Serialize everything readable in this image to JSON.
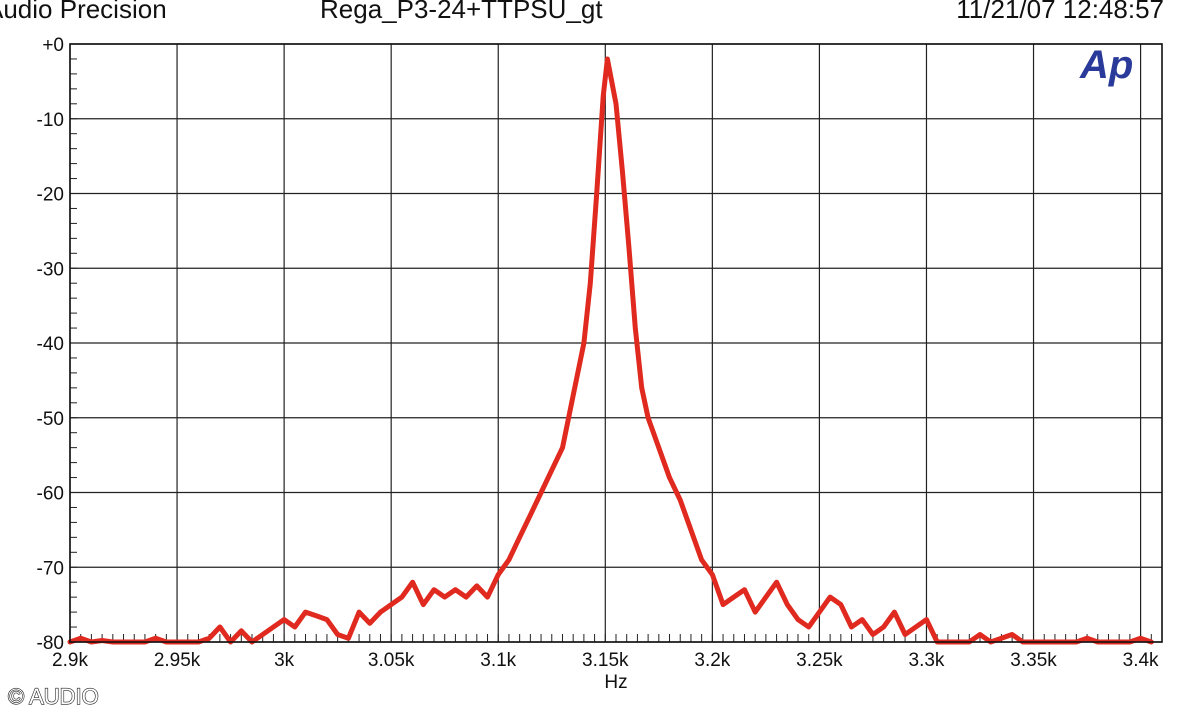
{
  "header": {
    "left": "Audio Precision",
    "center": "Rega_P3-24+TTPSU_gt",
    "right": "11/21/07 12:48:57"
  },
  "logo_text": "Ap",
  "copyright": "© AUDIO",
  "chart_data": {
    "type": "line",
    "xlabel": "Hz",
    "ylabel": "",
    "xlim": [
      2900,
      3410
    ],
    "ylim": [
      -80,
      0
    ],
    "grid": true,
    "x_ticks": [
      2900,
      2950,
      3000,
      3050,
      3100,
      3150,
      3200,
      3250,
      3300,
      3350,
      3400
    ],
    "x_tick_labels": [
      "2.9k",
      "2.95k",
      "3k",
      "3.05k",
      "3.1k",
      "3.15k",
      "3.2k",
      "3.25k",
      "3.3k",
      "3.35k",
      "3.4k"
    ],
    "y_ticks": [
      0,
      -10,
      -20,
      -30,
      -40,
      -50,
      -60,
      -70,
      -80
    ],
    "y_tick_labels": [
      "+0",
      "-10",
      "-20",
      "-30",
      "-40",
      "-50",
      "-60",
      "-70",
      "-80"
    ],
    "series": [
      {
        "color": "#e02a20",
        "x": [
          2900,
          2905,
          2910,
          2915,
          2920,
          2925,
          2930,
          2935,
          2940,
          2945,
          2950,
          2955,
          2960,
          2965,
          2970,
          2975,
          2980,
          2985,
          2990,
          2995,
          3000,
          3005,
          3010,
          3015,
          3020,
          3025,
          3030,
          3035,
          3040,
          3045,
          3050,
          3055,
          3060,
          3065,
          3070,
          3075,
          3080,
          3085,
          3090,
          3095,
          3100,
          3105,
          3110,
          3115,
          3120,
          3125,
          3130,
          3135,
          3140,
          3143,
          3146,
          3149,
          3151,
          3153,
          3155,
          3158,
          3161,
          3164,
          3167,
          3170,
          3175,
          3180,
          3185,
          3190,
          3195,
          3200,
          3205,
          3210,
          3215,
          3220,
          3225,
          3230,
          3235,
          3240,
          3245,
          3250,
          3255,
          3260,
          3265,
          3270,
          3275,
          3280,
          3285,
          3290,
          3295,
          3300,
          3305,
          3310,
          3315,
          3320,
          3325,
          3330,
          3335,
          3340,
          3345,
          3350,
          3355,
          3360,
          3365,
          3370,
          3375,
          3380,
          3385,
          3390,
          3395,
          3400,
          3405
        ],
        "y": [
          -80,
          -79.5,
          -80,
          -79.8,
          -80,
          -80,
          -80,
          -80,
          -79.5,
          -80,
          -80,
          -80,
          -80,
          -79.5,
          -78,
          -80,
          -78.5,
          -80,
          -79,
          -78,
          -77,
          -78,
          -76,
          -76.5,
          -77,
          -79,
          -79.5,
          -76,
          -77.5,
          -76,
          -75,
          -74,
          -72,
          -75,
          -73,
          -74,
          -73,
          -74,
          -72.5,
          -74,
          -71,
          -69,
          -66,
          -63,
          -60,
          -57,
          -54,
          -47,
          -40,
          -32,
          -20,
          -7,
          -2,
          -5,
          -8,
          -17,
          -27,
          -38,
          -46,
          -50,
          -54,
          -58,
          -61,
          -65,
          -69,
          -71,
          -75,
          -74,
          -73,
          -76,
          -74,
          -72,
          -75,
          -77,
          -78,
          -76,
          -74,
          -75,
          -78,
          -77,
          -79,
          -78,
          -76,
          -79,
          -78,
          -77,
          -80,
          -80,
          -80,
          -80,
          -79,
          -80,
          -79.5,
          -79,
          -80,
          -80,
          -80,
          -80,
          -80,
          -80,
          -79.5,
          -80,
          -80,
          -80,
          -80,
          -79.5,
          -80
        ]
      }
    ]
  }
}
